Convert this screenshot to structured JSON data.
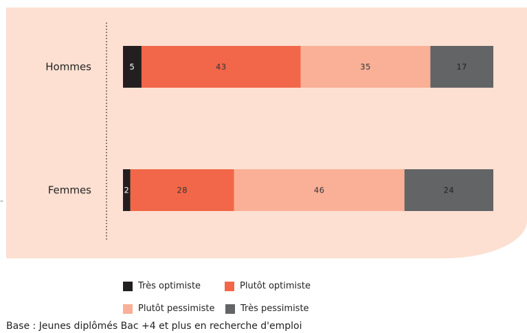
{
  "chart_data": {
    "type": "bar",
    "orientation": "horizontal",
    "stacked": true,
    "categories": [
      "Hommes",
      "Femmes"
    ],
    "series": [
      {
        "name": "Très optimiste",
        "color": "#231f20",
        "values": [
          5,
          2
        ]
      },
      {
        "name": "Plutôt optimiste",
        "color": "#f26749",
        "values": [
          43,
          28
        ]
      },
      {
        "name": "Plutôt pessimiste",
        "color": "#f9b096",
        "values": [
          35,
          46
        ]
      },
      {
        "name": "Très pessimiste",
        "color": "#636466",
        "values": [
          17,
          24
        ]
      }
    ],
    "xlim": [
      0,
      100
    ],
    "grid": false,
    "legend_position": "bottom",
    "value_label_colors": [
      "#ffffff",
      "#333333",
      "#333333",
      "#222222"
    ]
  },
  "note": "Base : Jeunes diplômés Bac +4 et plus en recherche d'emploi"
}
